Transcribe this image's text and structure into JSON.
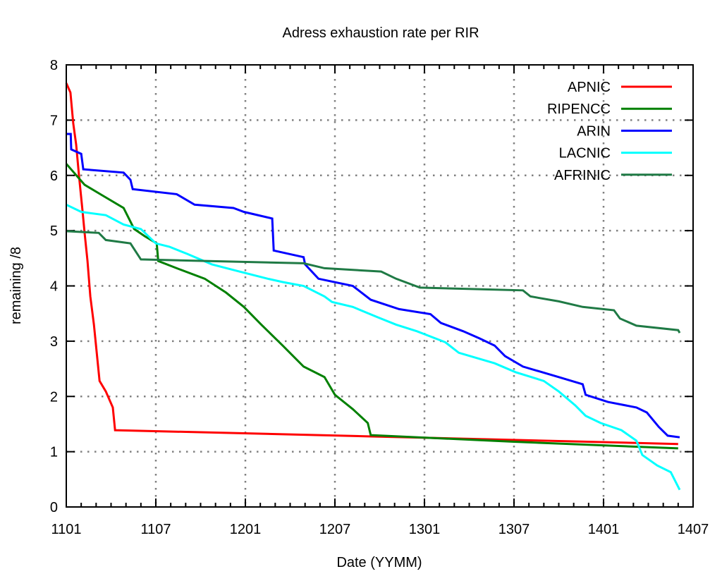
{
  "chart_data": {
    "type": "line",
    "title": "Adress exhaustion rate per RIR",
    "xlabel": "Date (YYMM)",
    "ylabel": "remaining /8",
    "x_unit": "months since 1101",
    "xlim": [
      0,
      42
    ],
    "ylim": [
      0,
      8
    ],
    "xticks": [
      {
        "value": 0,
        "label": "1101"
      },
      {
        "value": 6,
        "label": "1107"
      },
      {
        "value": 12,
        "label": "1201"
      },
      {
        "value": 18,
        "label": "1207"
      },
      {
        "value": 24,
        "label": "1301"
      },
      {
        "value": 30,
        "label": "1307"
      },
      {
        "value": 36,
        "label": "1401"
      },
      {
        "value": 42,
        "label": "1407"
      }
    ],
    "yticks": [
      "0",
      "1",
      "2",
      "3",
      "4",
      "5",
      "6",
      "7",
      "8"
    ],
    "grid": true,
    "legend_position": "top-right",
    "series": [
      {
        "name": "APNIC",
        "color": "#ff0000",
        "points": [
          [
            0,
            7.67
          ],
          [
            0.28,
            7.5
          ],
          [
            0.47,
            6.94
          ],
          [
            0.66,
            6.56
          ],
          [
            0.85,
            6.0
          ],
          [
            1.09,
            5.35
          ],
          [
            1.23,
            4.96
          ],
          [
            1.42,
            4.45
          ],
          [
            1.61,
            3.81
          ],
          [
            1.85,
            3.3
          ],
          [
            2.04,
            2.79
          ],
          [
            2.23,
            2.28
          ],
          [
            2.65,
            2.09
          ],
          [
            3.12,
            1.8
          ],
          [
            3.27,
            1.39
          ],
          [
            20,
            1.28
          ],
          [
            41,
            1.14
          ]
        ]
      },
      {
        "name": "RIPENCC",
        "color": "#008000",
        "points": [
          [
            0,
            6.21
          ],
          [
            1.23,
            5.83
          ],
          [
            2.41,
            5.64
          ],
          [
            3.84,
            5.41
          ],
          [
            4.55,
            5.03
          ],
          [
            5.26,
            4.9
          ],
          [
            6.06,
            4.77
          ],
          [
            6.16,
            4.45
          ],
          [
            7.4,
            4.32
          ],
          [
            9.28,
            4.13
          ],
          [
            10.7,
            3.88
          ],
          [
            11.9,
            3.62
          ],
          [
            13.07,
            3.3
          ],
          [
            14.5,
            2.92
          ],
          [
            15.9,
            2.54
          ],
          [
            17.3,
            2.35
          ],
          [
            18.0,
            2.03
          ],
          [
            19.2,
            1.77
          ],
          [
            20.2,
            1.52
          ],
          [
            20.4,
            1.3
          ],
          [
            30,
            1.18
          ],
          [
            41,
            1.06
          ]
        ]
      },
      {
        "name": "ARIN",
        "color": "#0000ff",
        "points": [
          [
            0,
            6.75
          ],
          [
            0.3,
            6.75
          ],
          [
            0.33,
            6.47
          ],
          [
            1.0,
            6.39
          ],
          [
            1.14,
            6.11
          ],
          [
            3.84,
            6.05
          ],
          [
            4.3,
            5.92
          ],
          [
            4.45,
            5.75
          ],
          [
            7.4,
            5.66
          ],
          [
            8.6,
            5.47
          ],
          [
            11.2,
            5.41
          ],
          [
            11.9,
            5.34
          ],
          [
            13.8,
            5.22
          ],
          [
            13.9,
            4.64
          ],
          [
            15.9,
            4.52
          ],
          [
            16.0,
            4.39
          ],
          [
            16.9,
            4.13
          ],
          [
            19.2,
            4.0
          ],
          [
            20.4,
            3.75
          ],
          [
            22.3,
            3.58
          ],
          [
            24.4,
            3.49
          ],
          [
            25.1,
            3.33
          ],
          [
            26.6,
            3.18
          ],
          [
            27.7,
            3.05
          ],
          [
            28.7,
            2.92
          ],
          [
            29.4,
            2.73
          ],
          [
            30.6,
            2.54
          ],
          [
            33,
            2.35
          ],
          [
            34.6,
            2.22
          ],
          [
            34.8,
            2.03
          ],
          [
            36.3,
            1.9
          ],
          [
            38.2,
            1.8
          ],
          [
            38.9,
            1.71
          ],
          [
            39.7,
            1.45
          ],
          [
            40.3,
            1.29
          ],
          [
            41.1,
            1.26
          ]
        ]
      },
      {
        "name": "LACNIC",
        "color": "#00ffff",
        "points": [
          [
            0,
            5.47
          ],
          [
            1,
            5.34
          ],
          [
            2.65,
            5.28
          ],
          [
            3.84,
            5.11
          ],
          [
            5.0,
            5.03
          ],
          [
            6.0,
            4.77
          ],
          [
            6.9,
            4.71
          ],
          [
            8.1,
            4.58
          ],
          [
            9.75,
            4.39
          ],
          [
            11.6,
            4.26
          ],
          [
            13.5,
            4.13
          ],
          [
            14.5,
            4.07
          ],
          [
            15.9,
            4.0
          ],
          [
            17.3,
            3.81
          ],
          [
            17.8,
            3.71
          ],
          [
            19.2,
            3.62
          ],
          [
            20.9,
            3.43
          ],
          [
            22.1,
            3.3
          ],
          [
            23.5,
            3.18
          ],
          [
            25.4,
            2.98
          ],
          [
            26.3,
            2.79
          ],
          [
            28.7,
            2.6
          ],
          [
            30.1,
            2.44
          ],
          [
            32,
            2.28
          ],
          [
            33,
            2.09
          ],
          [
            34.1,
            1.84
          ],
          [
            34.8,
            1.65
          ],
          [
            35.8,
            1.52
          ],
          [
            37.2,
            1.39
          ],
          [
            38.2,
            1.2
          ],
          [
            38.6,
            0.94
          ],
          [
            39.6,
            0.75
          ],
          [
            40.5,
            0.63
          ],
          [
            41.1,
            0.31
          ]
        ]
      },
      {
        "name": "AFRINIC",
        "color": "#1f7a45",
        "points": [
          [
            0,
            4.99
          ],
          [
            2.18,
            4.96
          ],
          [
            2.65,
            4.83
          ],
          [
            4.3,
            4.77
          ],
          [
            5.0,
            4.48
          ],
          [
            15.9,
            4.41
          ],
          [
            17.3,
            4.32
          ],
          [
            21.1,
            4.26
          ],
          [
            22.1,
            4.13
          ],
          [
            23.7,
            3.97
          ],
          [
            30.6,
            3.92
          ],
          [
            31.1,
            3.81
          ],
          [
            33,
            3.72
          ],
          [
            34.6,
            3.62
          ],
          [
            36.7,
            3.56
          ],
          [
            37.1,
            3.41
          ],
          [
            38.2,
            3.28
          ],
          [
            41,
            3.2
          ],
          [
            41.1,
            3.15
          ]
        ]
      }
    ]
  }
}
